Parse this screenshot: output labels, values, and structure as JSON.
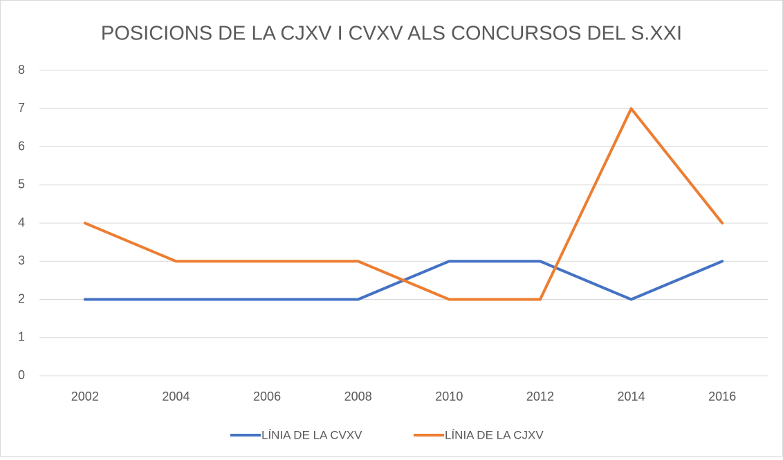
{
  "chart_data": {
    "type": "line",
    "title": "POSICIONS DE LA CJXV I CVXV ALS CONCURSOS DEL S.XXI",
    "categories": [
      "2002",
      "2004",
      "2006",
      "2008",
      "2010",
      "2012",
      "2014",
      "2016"
    ],
    "series": [
      {
        "name": "LÍNIA DE LA CVXV",
        "color": "#4472c4",
        "values": [
          2,
          2,
          2,
          2,
          3,
          3,
          2,
          3
        ]
      },
      {
        "name": "LÍNIA DE LA CJXV",
        "color": "#ed7d31",
        "values": [
          4,
          3,
          3,
          3,
          2,
          2,
          7,
          4
        ]
      }
    ],
    "ylim": [
      0,
      8
    ],
    "yticks": [
      0,
      1,
      2,
      3,
      4,
      5,
      6,
      7,
      8
    ],
    "grid": true,
    "legend": "bottom"
  }
}
